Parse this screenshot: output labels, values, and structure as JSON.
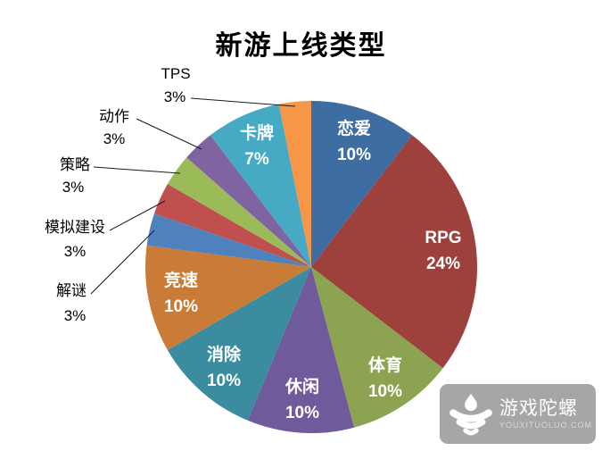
{
  "title": "新游上线类型",
  "chart_data": {
    "type": "pie",
    "title": "新游上线类型",
    "unit": "%",
    "legend": "none",
    "start_angle_deg": 0,
    "direction": "clockwise",
    "data_labels": "category name + percent",
    "slices": [
      {
        "label": "恋爱",
        "value": 10,
        "color": "#3D6DA1",
        "label_position": "inside"
      },
      {
        "label": "RPG",
        "value": 24,
        "color": "#9E403C",
        "label_position": "inside"
      },
      {
        "label": "体育",
        "value": 10,
        "color": "#8CA351",
        "label_position": "inside"
      },
      {
        "label": "休闲",
        "value": 10,
        "color": "#6F5A9B",
        "label_position": "inside"
      },
      {
        "label": "消除",
        "value": 10,
        "color": "#3A8C9E",
        "label_position": "inside"
      },
      {
        "label": "竞速",
        "value": 10,
        "color": "#C97C38",
        "label_position": "inside"
      },
      {
        "label": "解谜",
        "value": 3,
        "color": "#4F81BD",
        "label_position": "outside"
      },
      {
        "label": "模拟建设",
        "value": 3,
        "color": "#C0504D",
        "label_position": "outside"
      },
      {
        "label": "策略",
        "value": 3,
        "color": "#9BBB59",
        "label_position": "outside"
      },
      {
        "label": "动作",
        "value": 3,
        "color": "#8064A2",
        "label_position": "outside"
      },
      {
        "label": "卡牌",
        "value": 7,
        "color": "#46AAC4",
        "label_position": "inside"
      },
      {
        "label": "TPS",
        "value": 3,
        "color": "#F79646",
        "label_position": "outside"
      }
    ]
  },
  "watermark": {
    "name": "游戏陀螺",
    "url_text": "YOUXITUOLUO.COM",
    "badge_color": "#A6A6A6",
    "icon": "spinning-top-icon"
  }
}
